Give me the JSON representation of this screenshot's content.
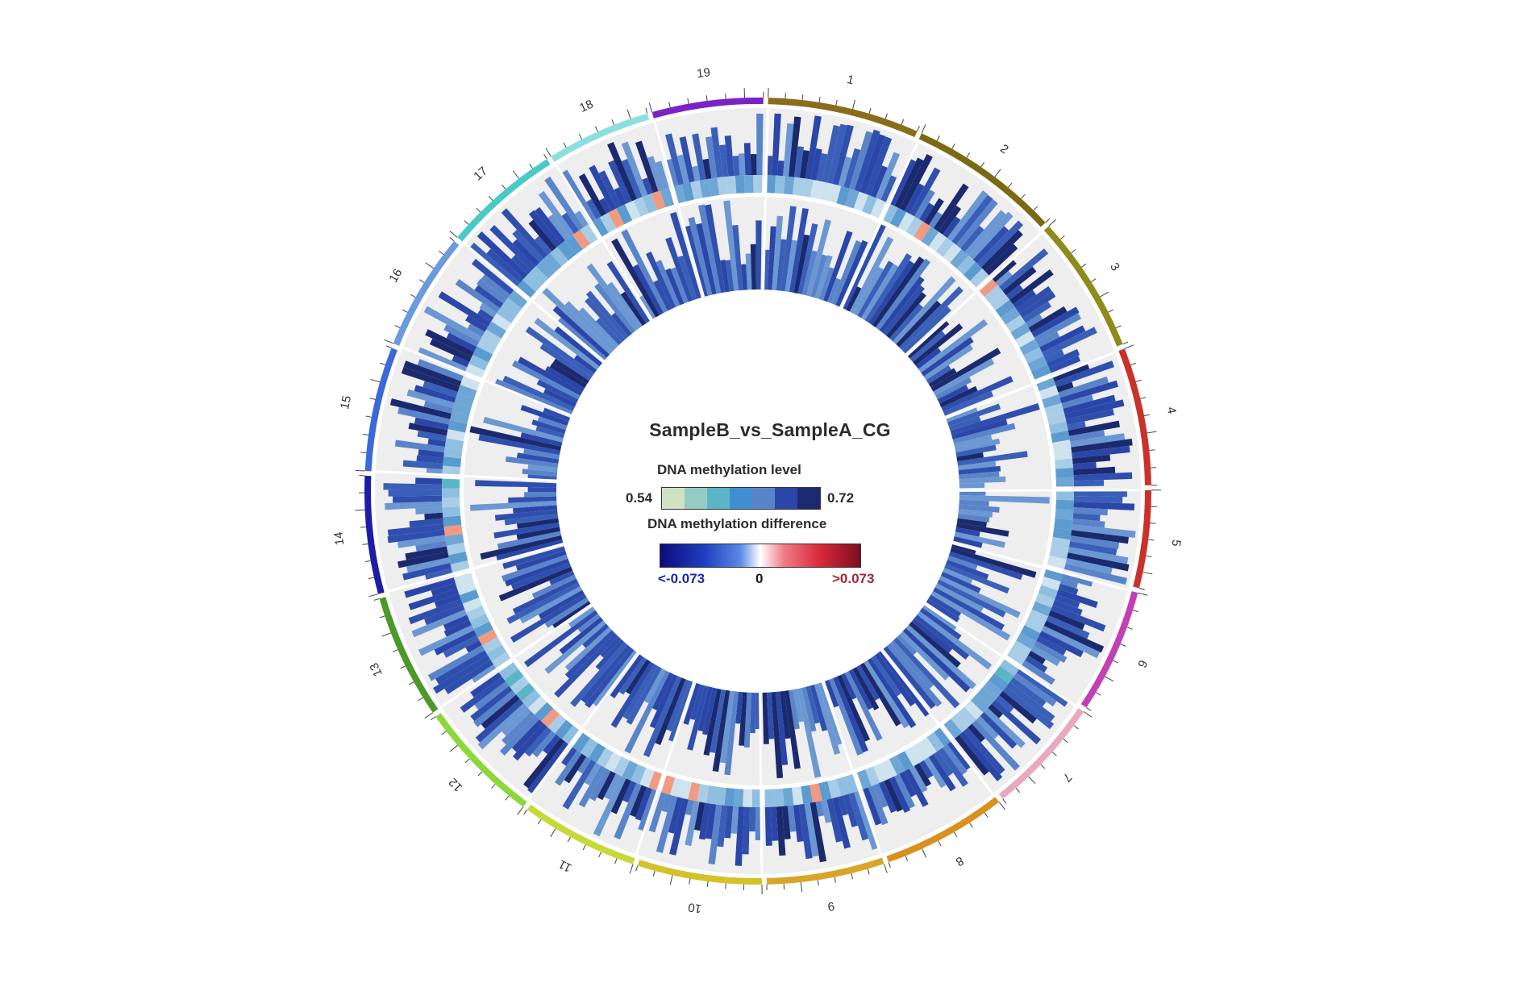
{
  "chart_data": {
    "type": "circos",
    "title": "SampleB_vs_SampleA_CG",
    "chromosomes": [
      {
        "name": "1",
        "color": "#8a6d1a"
      },
      {
        "name": "2",
        "color": "#7a6a12"
      },
      {
        "name": "3",
        "color": "#8f8a1c"
      },
      {
        "name": "4",
        "color": "#c8322b"
      },
      {
        "name": "5",
        "color": "#c8322b"
      },
      {
        "name": "6",
        "color": "#c23fb4"
      },
      {
        "name": "7",
        "color": "#e8a9bf"
      },
      {
        "name": "8",
        "color": "#d9901e"
      },
      {
        "name": "9",
        "color": "#d8a528"
      },
      {
        "name": "10",
        "color": "#d5c12a"
      },
      {
        "name": "11",
        "color": "#c7d83a"
      },
      {
        "name": "12",
        "color": "#8ad83a"
      },
      {
        "name": "13",
        "color": "#4a9a2a"
      },
      {
        "name": "14",
        "color": "#1c1ca8"
      },
      {
        "name": "15",
        "color": "#3a6ad8"
      },
      {
        "name": "16",
        "color": "#6a9ae0"
      },
      {
        "name": "17",
        "color": "#4ac9c9"
      },
      {
        "name": "18",
        "color": "#8ae0e0"
      },
      {
        "name": "19",
        "color": "#7a22c8"
      }
    ],
    "legend": {
      "level_label": "DNA methylation level",
      "level_min": "0.54",
      "level_max": "0.72",
      "level_colors": [
        "#cfe3c3",
        "#95cbc2",
        "#5bb5c6",
        "#3f8fd0",
        "#5a84c9",
        "#2a46a8",
        "#1b2a6e"
      ],
      "difference_label": "DNA methylation difference",
      "difference_min": "<-0.073",
      "difference_mid": "0",
      "difference_max": ">0.073"
    }
  }
}
